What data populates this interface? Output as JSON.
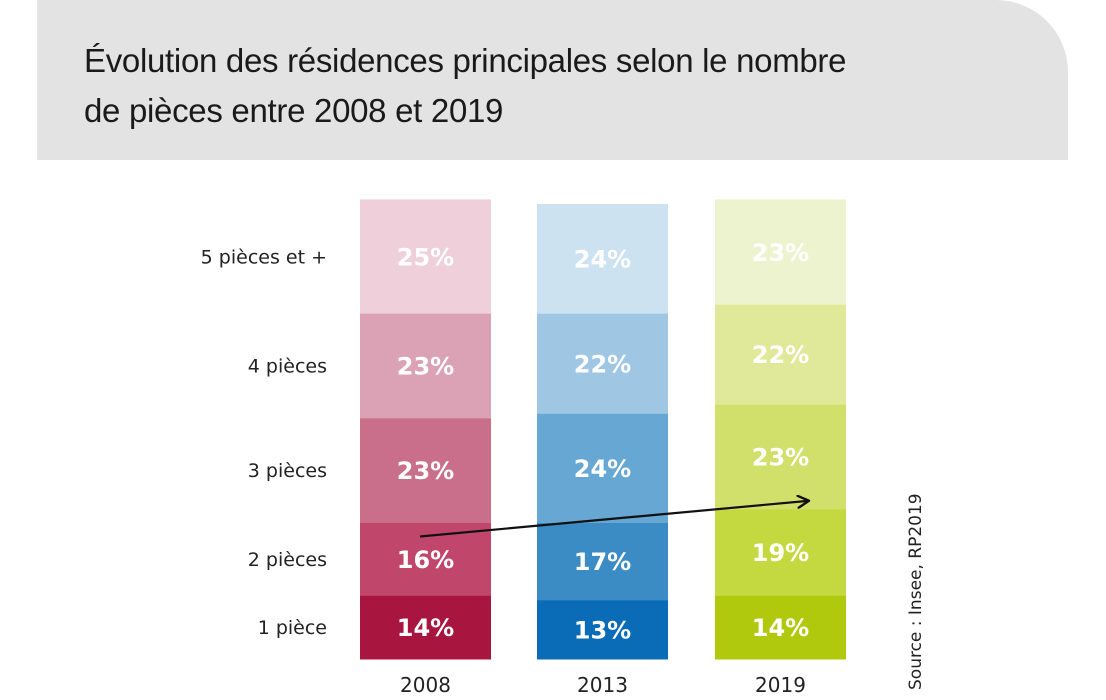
{
  "chart_data": {
    "type": "bar",
    "stacked": true,
    "title": "Évolution des résidences principales selon le nombre de pièces entre 2008 et 2019",
    "categories": [
      "2008",
      "2013",
      "2019"
    ],
    "series": [
      {
        "name": "1 pièce",
        "values": [
          14,
          13,
          14
        ],
        "labels": [
          "14%",
          "13%",
          "14%"
        ]
      },
      {
        "name": "2 pièces",
        "values": [
          16,
          17,
          19
        ],
        "labels": [
          "16%",
          "17%",
          "19%"
        ]
      },
      {
        "name": "3 pièces",
        "values": [
          23,
          24,
          23
        ],
        "labels": [
          "23%",
          "24%",
          "23%"
        ]
      },
      {
        "name": "4 pièces",
        "values": [
          23,
          22,
          22
        ],
        "labels": [
          "23%",
          "22%",
          "22%"
        ]
      },
      {
        "name": "5 pièces et +",
        "values": [
          25,
          24,
          23
        ],
        "labels": [
          "25%",
          "24%",
          "23%"
        ]
      }
    ],
    "colors": {
      "2008": [
        "#a8153f",
        "#c0476b",
        "#c96f8c",
        "#dba2b5",
        "#eecfda"
      ],
      "2013": [
        "#0a6bb6",
        "#3b8bc4",
        "#67a7d4",
        "#9fc6e3",
        "#cde2f0"
      ],
      "2019": [
        "#b1c90d",
        "#c4d940",
        "#d1e06a",
        "#e0e99a",
        "#eef3cf"
      ]
    },
    "annotation": {
      "type": "arrow",
      "from": {
        "category": "2008",
        "series": "2 pièces"
      },
      "to": {
        "category": "2019",
        "series": "3 pièces"
      }
    },
    "xlabel": "",
    "ylabel": "",
    "ylim": [
      0,
      100
    ],
    "grid": false,
    "legend": "left (row labels)",
    "source": "Source : Insee, RP2019"
  },
  "header": {
    "title_line1": "Évolution des résidences principales selon le nombre",
    "title_line2": "de pièces entre 2008 et 2019"
  }
}
